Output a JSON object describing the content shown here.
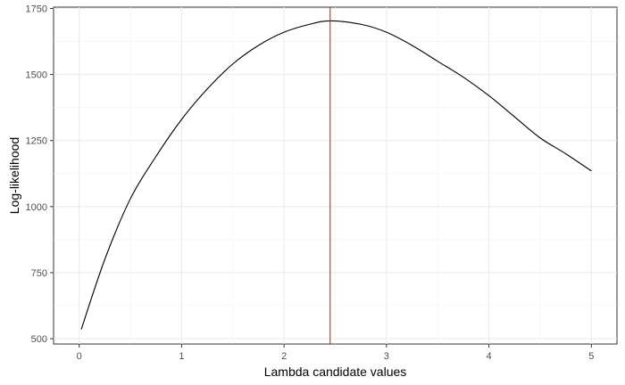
{
  "chart_data": {
    "type": "line",
    "title": "",
    "xlabel": "Lambda candidate values",
    "ylabel": "Log-likelihood",
    "xlim": [
      -0.25,
      5.25
    ],
    "ylim": [
      480,
      1755
    ],
    "x_ticks": [
      0,
      1,
      2,
      3,
      4,
      5
    ],
    "x_tick_labels": [
      "0",
      "1",
      "2",
      "3",
      "4",
      "5"
    ],
    "y_ticks": [
      500,
      750,
      1000,
      1250,
      1500,
      1750
    ],
    "y_tick_labels": [
      "500",
      "750",
      "1000",
      "1250",
      "1500",
      "1750"
    ],
    "grid": true,
    "legend": "none",
    "series": [
      {
        "color": "#000000",
        "x": [
          0.02,
          0.25,
          0.5,
          0.75,
          1.0,
          1.25,
          1.5,
          1.75,
          2.0,
          2.25,
          2.45,
          2.75,
          3.0,
          3.25,
          3.5,
          3.75,
          4.0,
          4.25,
          4.5,
          4.75,
          5.0
        ],
        "y": [
          535,
          800,
          1030,
          1190,
          1330,
          1445,
          1540,
          1610,
          1660,
          1690,
          1703,
          1690,
          1660,
          1610,
          1550,
          1490,
          1420,
          1340,
          1260,
          1200,
          1135
        ]
      }
    ],
    "reference_lines": [
      {
        "orientation": "vertical",
        "x": 2.45,
        "color": "#e41a1c"
      }
    ]
  }
}
